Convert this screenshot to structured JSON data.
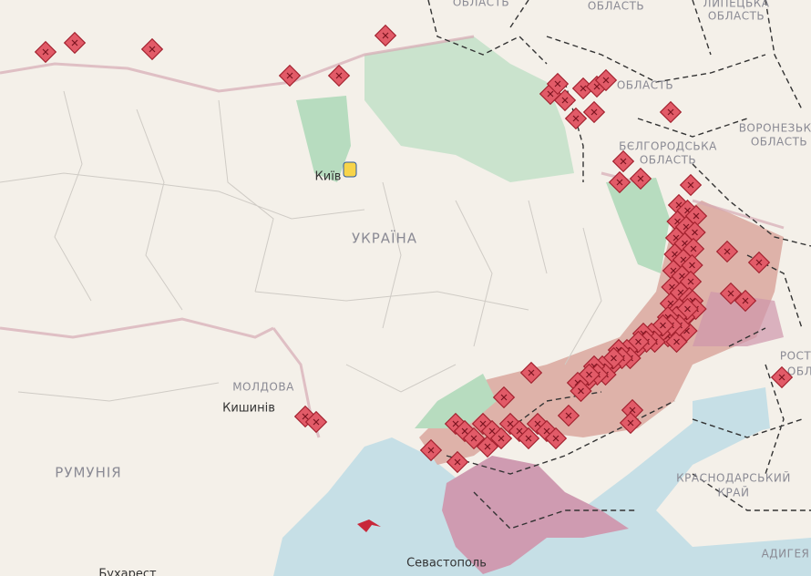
{
  "labels": [
    {
      "text": "ОБЛАСТЬ"
    },
    {
      "text": "ОБЛАСТЬ"
    },
    {
      "text": "ЛИПЕЦЬКА"
    },
    {
      "text": "ОБЛАСТЬ"
    },
    {
      "text": "ОБЛАСТЬ"
    },
    {
      "text": "ВОРОНЕЗЬКА"
    },
    {
      "text": "ОБЛАСТЬ"
    },
    {
      "text": "БЄЛГОРОДСЬКА"
    },
    {
      "text": "ОБЛАСТЬ"
    },
    {
      "text": "Київ"
    },
    {
      "text": "УКРАЇНА"
    },
    {
      "text": "МОЛДОВА"
    },
    {
      "text": "Кишинів"
    },
    {
      "text": "РУМУНІЯ"
    },
    {
      "text": "РОСТО"
    },
    {
      "text": "ОБЛ"
    },
    {
      "text": "КРАСНОДАРСЬКИЙ"
    },
    {
      "text": "КРАЙ"
    },
    {
      "text": "Севастополь"
    },
    {
      "text": "АДИГЕЯ"
    },
    {
      "text": "Бухарест"
    }
  ]
}
